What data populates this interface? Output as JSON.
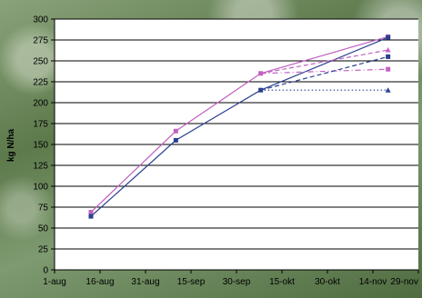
{
  "chart_data": {
    "type": "line",
    "title": "",
    "xlabel": "",
    "ylabel": "kg N/ha",
    "x_tick_labels": [
      "1-aug",
      "16-aug",
      "31-aug",
      "15-sep",
      "30-sep",
      "15-okt",
      "30-okt",
      "14-nov",
      "29-nov"
    ],
    "y_ticks": [
      0,
      25,
      50,
      75,
      100,
      125,
      150,
      175,
      200,
      225,
      250,
      275,
      300
    ],
    "ylim": [
      0,
      300
    ],
    "grid": "horizontal",
    "legend": "none",
    "series": [
      {
        "color": "#c061c0",
        "marker": "square",
        "dash": "solid",
        "x": [
          "13-aug",
          "10-sep",
          "8-okt",
          "19-nov"
        ],
        "y": [
          69,
          166,
          235,
          279
        ]
      },
      {
        "color": "#2a3f8f",
        "marker": "square",
        "dash": "solid",
        "x": [
          "13-aug",
          "10-sep",
          "8-okt",
          "19-nov"
        ],
        "y": [
          64,
          155,
          215,
          278
        ]
      },
      {
        "color": "#c061c0",
        "marker": "triangle",
        "dash": "dashed",
        "x": [
          "8-okt",
          "19-nov"
        ],
        "y": [
          235,
          263
        ]
      },
      {
        "color": "#c061c0",
        "marker": "square",
        "dash": "dash-dot",
        "x": [
          "8-okt",
          "19-nov"
        ],
        "y": [
          235,
          240
        ]
      },
      {
        "color": "#2a3f8f",
        "marker": "square",
        "dash": "dashed",
        "x": [
          "8-okt",
          "19-nov"
        ],
        "y": [
          215,
          255
        ]
      },
      {
        "color": "#2a3f8f",
        "marker": "triangle",
        "dash": "dotted",
        "x": [
          "8-okt",
          "19-nov"
        ],
        "y": [
          215,
          215
        ]
      }
    ]
  }
}
